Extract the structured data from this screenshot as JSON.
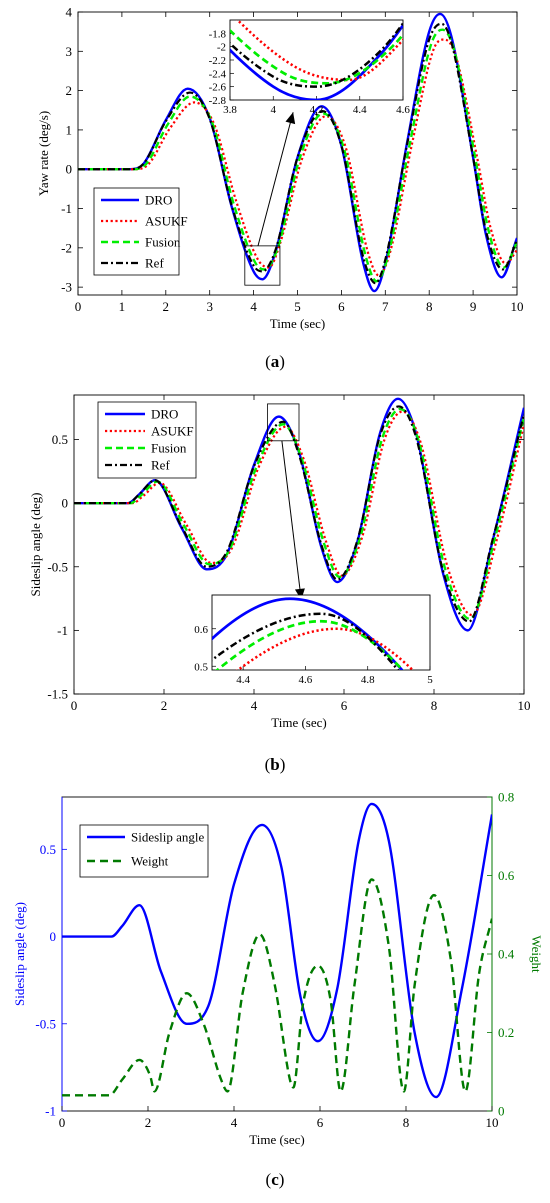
{
  "captions": [
    "a",
    "b",
    "c"
  ],
  "colors": {
    "DRO": "#0000ff",
    "ASUKF": "#ff0000",
    "Fusion": "#00ee00",
    "Ref": "#000000",
    "Sideslip": "#0000ff",
    "Weight": "#007a00"
  },
  "chart_data": [
    {
      "type": "line",
      "xlabel": "Time (sec)",
      "ylabel": "Yaw rate (deg/s)",
      "xlim": [
        0,
        10
      ],
      "ylim": [
        -3.2,
        4
      ],
      "xticks": [
        0,
        1,
        2,
        3,
        4,
        5,
        6,
        7,
        8,
        9,
        10
      ],
      "yticks": [
        -3,
        -2,
        -1,
        0,
        1,
        2,
        3,
        4
      ],
      "legend": "middle-left",
      "series": [
        {
          "name": "DRO",
          "x": [
            0,
            1.2,
            1.5,
            2.0,
            2.5,
            3.0,
            3.5,
            4.0,
            4.2,
            4.5,
            5.0,
            5.55,
            6.0,
            6.5,
            6.75,
            7.0,
            7.5,
            8.0,
            8.25,
            8.5,
            9.0,
            9.3,
            9.65,
            10.0
          ],
          "values": [
            0,
            0,
            0.15,
            1.25,
            2.05,
            1.3,
            -0.95,
            -2.6,
            -2.8,
            -2.1,
            0.3,
            1.6,
            0.6,
            -2.4,
            -3.1,
            -2.4,
            0.7,
            3.5,
            3.95,
            3.4,
            0.3,
            -1.7,
            -2.75,
            -1.75
          ]
        },
        {
          "name": "ASUKF",
          "x": [
            0,
            1.3,
            1.6,
            2.1,
            2.65,
            3.1,
            3.6,
            4.1,
            4.35,
            4.6,
            5.1,
            5.65,
            6.1,
            6.6,
            6.85,
            7.1,
            7.6,
            8.1,
            8.35,
            8.6,
            9.1,
            9.4,
            9.75,
            10.0
          ],
          "values": [
            0,
            0,
            0.12,
            1.05,
            1.7,
            1.15,
            -0.8,
            -2.3,
            -2.5,
            -1.9,
            0.25,
            1.35,
            0.55,
            -2.1,
            -2.7,
            -2.15,
            0.6,
            3.05,
            3.3,
            2.9,
            0.25,
            -1.5,
            -2.4,
            -2.05
          ]
        },
        {
          "name": "Fusion",
          "x": [
            0,
            1.25,
            1.55,
            2.05,
            2.55,
            3.05,
            3.55,
            4.05,
            4.25,
            4.55,
            5.05,
            5.58,
            6.05,
            6.55,
            6.8,
            7.05,
            7.55,
            8.05,
            8.3,
            8.55,
            9.05,
            9.35,
            9.7,
            10.0
          ],
          "values": [
            0,
            0,
            0.13,
            1.15,
            1.85,
            1.2,
            -0.9,
            -2.4,
            -2.55,
            -2.0,
            0.28,
            1.42,
            0.55,
            -2.2,
            -2.85,
            -2.25,
            0.6,
            3.2,
            3.55,
            3.1,
            0.28,
            -1.55,
            -2.5,
            -1.85
          ]
        },
        {
          "name": "Ref",
          "x": [
            0,
            1.2,
            1.5,
            2.0,
            2.55,
            3.0,
            3.5,
            4.0,
            4.2,
            4.5,
            5.0,
            5.57,
            6.0,
            6.5,
            6.78,
            7.0,
            7.5,
            8.0,
            8.28,
            8.5,
            9.0,
            9.3,
            9.68,
            10.0
          ],
          "values": [
            0,
            0,
            0.15,
            1.22,
            1.95,
            1.28,
            -0.92,
            -2.45,
            -2.6,
            -2.05,
            0.3,
            1.48,
            0.6,
            -2.25,
            -2.9,
            -2.3,
            0.65,
            3.3,
            3.7,
            3.25,
            0.3,
            -1.6,
            -2.55,
            -1.8
          ]
        }
      ],
      "inset": {
        "xlim": [
          3.8,
          4.6
        ],
        "ylim": [
          -2.8,
          -1.6
        ],
        "xticks": [
          3.8,
          4,
          4.2,
          4.4,
          4.6
        ],
        "yticks": [
          -2.8,
          -2.6,
          -2.4,
          -2.2,
          -2,
          -1.8
        ],
        "xticklabels": [
          "3.8",
          "4",
          "4.2",
          "4.4",
          "4.6"
        ],
        "yticklabels": [
          "-2.8",
          "-2.6",
          "-2.4",
          "-2.2",
          "-2",
          "-1.8"
        ]
      }
    },
    {
      "type": "line",
      "xlabel": "Time (sec)",
      "ylabel": "Sideslip angle (deg)",
      "xlim": [
        0,
        10
      ],
      "ylim": [
        -1.5,
        0.85
      ],
      "xticks": [
        0,
        2,
        4,
        6,
        8,
        10
      ],
      "yticks": [
        -1.5,
        -1,
        -0.5,
        0,
        0.5
      ],
      "legend": "top-left",
      "series": [
        {
          "name": "DRO",
          "x": [
            0,
            1.2,
            1.45,
            1.8,
            2.4,
            2.95,
            3.4,
            4.0,
            4.55,
            5.0,
            5.5,
            5.85,
            6.3,
            6.8,
            7.2,
            7.6,
            8.2,
            8.75,
            9.3,
            10.0
          ],
          "values": [
            0,
            0,
            0.07,
            0.18,
            -0.2,
            -0.52,
            -0.4,
            0.3,
            0.68,
            0.4,
            -0.35,
            -0.62,
            -0.3,
            0.55,
            0.82,
            0.55,
            -0.55,
            -1.0,
            -0.3,
            0.75
          ]
        },
        {
          "name": "ASUKF",
          "x": [
            0,
            1.3,
            1.55,
            1.9,
            2.5,
            3.05,
            3.5,
            4.1,
            4.7,
            5.1,
            5.6,
            5.95,
            6.4,
            6.9,
            7.3,
            7.7,
            8.3,
            8.85,
            9.4,
            10.0
          ],
          "values": [
            0,
            0,
            0.06,
            0.16,
            -0.17,
            -0.47,
            -0.36,
            0.28,
            0.6,
            0.35,
            -0.3,
            -0.57,
            -0.27,
            0.5,
            0.72,
            0.48,
            -0.5,
            -0.88,
            -0.28,
            0.62
          ]
        },
        {
          "name": "Fusion",
          "x": [
            0,
            1.25,
            1.5,
            1.85,
            2.45,
            3.0,
            3.45,
            4.05,
            4.65,
            5.05,
            5.55,
            5.9,
            6.35,
            6.85,
            7.25,
            7.65,
            8.25,
            8.8,
            9.35,
            10.0
          ],
          "values": [
            0,
            0,
            0.065,
            0.17,
            -0.18,
            -0.48,
            -0.37,
            0.28,
            0.62,
            0.36,
            -0.31,
            -0.58,
            -0.28,
            0.51,
            0.74,
            0.5,
            -0.52,
            -0.91,
            -0.28,
            0.68
          ]
        },
        {
          "name": "Ref",
          "x": [
            0,
            1.2,
            1.45,
            1.8,
            2.4,
            2.95,
            3.4,
            4.0,
            4.65,
            5.0,
            5.5,
            5.85,
            6.3,
            6.8,
            7.22,
            7.6,
            8.2,
            8.78,
            9.3,
            10.0
          ],
          "values": [
            0,
            0,
            0.07,
            0.18,
            -0.19,
            -0.5,
            -0.38,
            0.29,
            0.64,
            0.38,
            -0.33,
            -0.6,
            -0.29,
            0.53,
            0.76,
            0.52,
            -0.53,
            -0.93,
            -0.29,
            0.7
          ]
        }
      ],
      "inset": {
        "xlim": [
          4.3,
          5.0
        ],
        "ylim": [
          0.49,
          0.69
        ],
        "xticks": [
          4.4,
          4.6,
          4.8,
          5
        ],
        "yticks": [
          0.5,
          0.6
        ],
        "xticklabels": [
          "4.4",
          "4.6",
          "4.8",
          "5"
        ],
        "yticklabels": [
          "0.5",
          "0.6"
        ]
      }
    },
    {
      "type": "line",
      "xlabel": "Time (sec)",
      "ylabel": "Sideslip angle (deg)",
      "ylabel_right": "Weight",
      "xlim": [
        0,
        10
      ],
      "ylim": [
        -1,
        0.8
      ],
      "ylim_right": [
        0,
        0.8
      ],
      "xticks": [
        0,
        2,
        4,
        6,
        8,
        10
      ],
      "yticks": [
        -1,
        -0.5,
        0,
        0.5
      ],
      "yticks_right": [
        0,
        0.2,
        0.4,
        0.6,
        0.8
      ],
      "legend": "top-left",
      "series": [
        {
          "name": "Sideslip angle",
          "axis": "left",
          "x": [
            0,
            1.15,
            1.4,
            1.8,
            2.3,
            2.9,
            3.4,
            4.0,
            4.65,
            5.1,
            5.55,
            5.95,
            6.4,
            6.9,
            7.2,
            7.6,
            8.2,
            8.7,
            9.3,
            10.0
          ],
          "values": [
            0,
            0,
            0.06,
            0.18,
            -0.2,
            -0.5,
            -0.4,
            0.3,
            0.64,
            0.4,
            -0.35,
            -0.6,
            -0.3,
            0.55,
            0.76,
            0.55,
            -0.55,
            -0.92,
            -0.3,
            0.7
          ]
        },
        {
          "name": "Weight",
          "axis": "right",
          "x": [
            0,
            1.1,
            1.4,
            1.8,
            2.05,
            2.15,
            2.5,
            2.9,
            3.3,
            3.7,
            3.85,
            4.2,
            4.6,
            4.95,
            5.3,
            5.38,
            5.6,
            5.95,
            6.25,
            6.48,
            6.8,
            7.2,
            7.6,
            7.95,
            8.2,
            8.65,
            9.05,
            9.38,
            9.7,
            10.0
          ],
          "values": [
            0.04,
            0.04,
            0.08,
            0.13,
            0.09,
            0.05,
            0.2,
            0.3,
            0.22,
            0.08,
            0.05,
            0.3,
            0.45,
            0.32,
            0.08,
            0.06,
            0.27,
            0.37,
            0.28,
            0.05,
            0.32,
            0.59,
            0.42,
            0.05,
            0.32,
            0.55,
            0.38,
            0.05,
            0.35,
            0.49
          ]
        }
      ]
    }
  ]
}
